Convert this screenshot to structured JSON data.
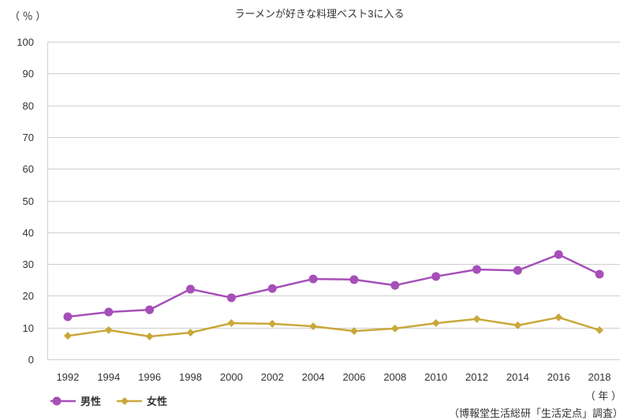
{
  "chart_data": {
    "type": "line",
    "title": "ラーメンが好きな料理ベスト3に入る",
    "ylabel": "（ ％ ）",
    "xlabel": "（ 年 ）",
    "source": "（博報堂生活総研「生活定点」調査）",
    "categories": [
      "1992",
      "1994",
      "1996",
      "1998",
      "2000",
      "2002",
      "2004",
      "2006",
      "2008",
      "2010",
      "2012",
      "2014",
      "2016",
      "2018"
    ],
    "yticks": [
      0,
      10,
      20,
      30,
      40,
      50,
      60,
      70,
      80,
      90,
      100
    ],
    "ylim": [
      0,
      100
    ],
    "grid": true,
    "legend_position": "bottom-left",
    "series": [
      {
        "name": "男性",
        "color": "#a64fb8",
        "marker": "circle",
        "values": [
          13.4,
          14.9,
          15.6,
          22.1,
          19.4,
          22.3,
          25.3,
          25.1,
          23.3,
          26.1,
          28.3,
          28.0,
          33.0,
          26.8
        ]
      },
      {
        "name": "女性",
        "color": "#c9a83b",
        "marker": "diamond",
        "values": [
          7.4,
          9.2,
          7.2,
          8.4,
          11.4,
          11.2,
          10.4,
          8.9,
          9.7,
          11.4,
          12.7,
          10.7,
          13.2,
          9.2
        ]
      }
    ],
    "colors": {
      "grid": "#cfcfcf",
      "text": "#333333"
    }
  }
}
